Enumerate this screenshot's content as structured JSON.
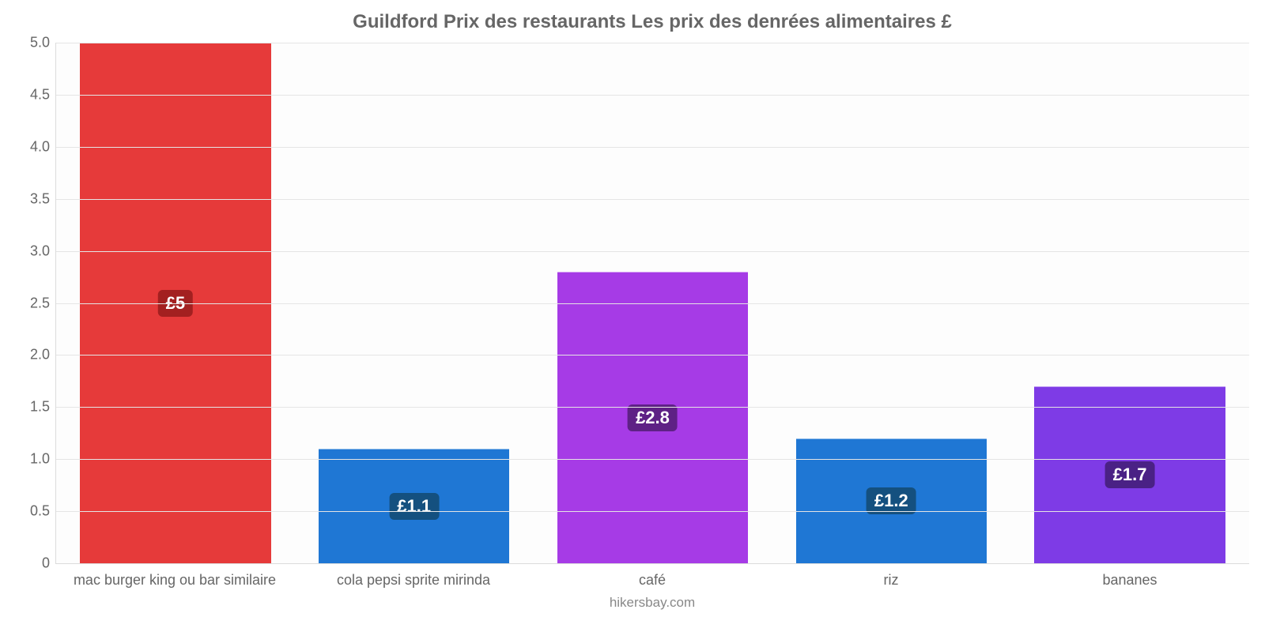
{
  "chart": {
    "type": "bar",
    "title": "Guildford Prix des restaurants Les prix des denrées alimentaires £",
    "title_fontsize": 24,
    "title_color": "#666666",
    "source": "hikersbay.com",
    "background_color": "#fdfdfd",
    "grid_color": "#e5e5e5",
    "axis_color": "#dcdcdc",
    "label_color": "#666666",
    "label_fontsize": 18,
    "ylim": [
      0,
      5
    ],
    "ytick_step": 0.5,
    "yticks": [
      {
        "v": 0,
        "label": "0"
      },
      {
        "v": 0.5,
        "label": "0.5"
      },
      {
        "v": 1.0,
        "label": "1.0"
      },
      {
        "v": 1.5,
        "label": "1.5"
      },
      {
        "v": 2.0,
        "label": "2.0"
      },
      {
        "v": 2.5,
        "label": "2.5"
      },
      {
        "v": 3.0,
        "label": "3.0"
      },
      {
        "v": 3.5,
        "label": "3.5"
      },
      {
        "v": 4.0,
        "label": "4.0"
      },
      {
        "v": 4.5,
        "label": "4.5"
      },
      {
        "v": 5.0,
        "label": "5.0"
      }
    ],
    "bar_width_pct": 80,
    "bars": [
      {
        "category": "mac burger king ou bar similaire",
        "value": 5.0,
        "value_label": "£5",
        "fill": "#e63a3a",
        "badge_bg": "#a32020"
      },
      {
        "category": "cola pepsi sprite mirinda",
        "value": 1.1,
        "value_label": "£1.1",
        "fill": "#1f77d4",
        "badge_bg": "#14507f"
      },
      {
        "category": "café",
        "value": 2.8,
        "value_label": "£2.8",
        "fill": "#a63be6",
        "badge_bg": "#5e2185"
      },
      {
        "category": "riz",
        "value": 1.2,
        "value_label": "£1.2",
        "fill": "#1f77d4",
        "badge_bg": "#14507f"
      },
      {
        "category": "bananes",
        "value": 1.7,
        "value_label": "£1.7",
        "fill": "#7e3be6",
        "badge_bg": "#4a2185"
      }
    ]
  }
}
